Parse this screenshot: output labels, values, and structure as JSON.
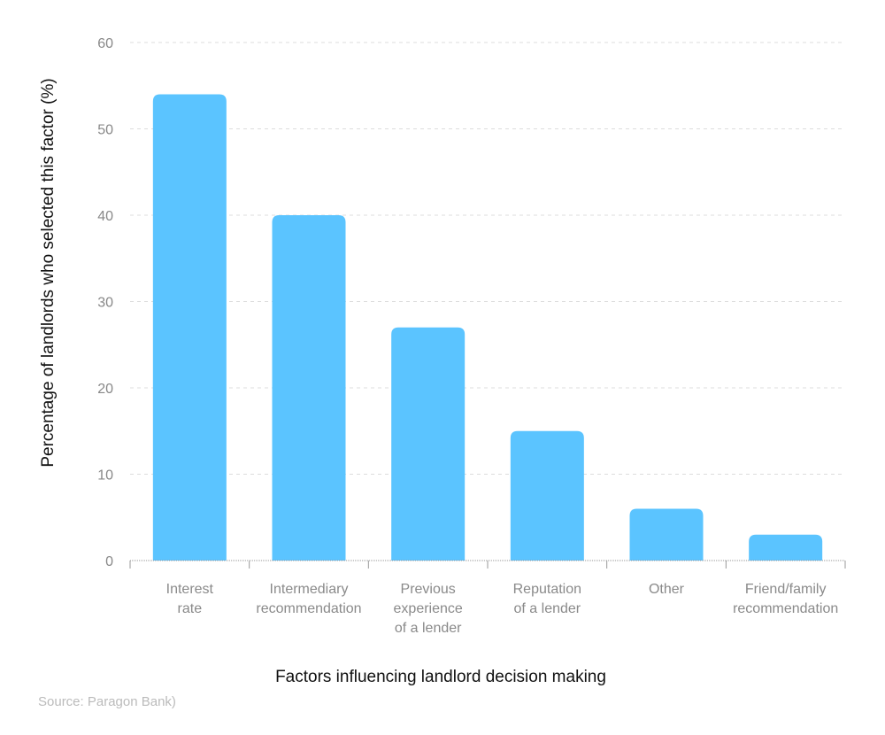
{
  "chart_data": {
    "type": "bar",
    "categories": [
      [
        "Interest",
        "rate"
      ],
      [
        "Intermediary",
        "recommendation"
      ],
      [
        "Previous",
        "experience",
        "of a lender"
      ],
      [
        "Reputation",
        "of a lender"
      ],
      [
        "Other"
      ],
      [
        "Friend/family",
        "recommendation"
      ]
    ],
    "values": [
      54,
      40,
      27,
      15,
      6,
      3
    ],
    "xlabel": "Factors influencing landlord decision making",
    "ylabel": "Percentage of landlords who selected this factor (%)",
    "ylim": [
      0,
      60
    ],
    "yticks": [
      0,
      10,
      20,
      30,
      40,
      50,
      60
    ],
    "grid": true,
    "bar_color": "#5BC4FF"
  },
  "source": "Source: Paragon Bank)"
}
